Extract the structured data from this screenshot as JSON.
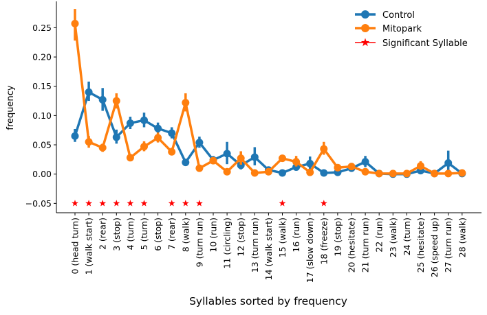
{
  "chart_data": {
    "type": "line",
    "xlabel": "Syllables sorted by frequency",
    "ylabel": "frequency",
    "ylim": [
      -0.066,
      0.295
    ],
    "yticks": [
      "0.25",
      "0.20",
      "0.15",
      "0.10",
      "0.05",
      "0.00",
      "−0.05"
    ],
    "ytick_values": [
      0.25,
      0.2,
      0.15,
      0.1,
      0.05,
      0.0,
      -0.05
    ],
    "categories": [
      "0 (head turn)",
      "1 (walk start)",
      "2 (rear)",
      "3 (stop)",
      "4 (turn)",
      "5 (turn)",
      "6 (stop)",
      "7 (rear)",
      "8 (walk)",
      "9 (turn run)",
      "10 (run)",
      "11 (circling)",
      "12 (stop)",
      "13 (turn run)",
      "14 (walk start)",
      "15 (walk)",
      "16 (run)",
      "17 (slow down)",
      "18 (freeze)",
      "19 (stop)",
      "20 (hesitate)",
      "21 (turn run)",
      "22 (run)",
      "23 (walk)",
      "24 (turn)",
      "25 (hesitate)",
      "26 (speed up)",
      "27 (turn run)",
      "28 (walk)"
    ],
    "legend_position": "top-right",
    "series": [
      {
        "name": "Control",
        "color": "#1f77b4",
        "values": [
          0.065,
          0.14,
          0.127,
          0.063,
          0.087,
          0.092,
          0.078,
          0.07,
          0.02,
          0.054,
          0.024,
          0.035,
          0.015,
          0.029,
          0.007,
          0.002,
          0.012,
          0.018,
          0.002,
          0.003,
          0.01,
          0.021,
          0.001,
          0.0,
          0.0,
          0.006,
          0.001,
          0.019,
          0.001
        ],
        "err_low": [
          0.055,
          0.125,
          0.108,
          0.052,
          0.077,
          0.08,
          0.07,
          0.061,
          0.015,
          0.045,
          0.017,
          0.017,
          0.008,
          0.015,
          0.002,
          0.0,
          0.006,
          0.008,
          0.0,
          0.0,
          0.005,
          0.012,
          0.0,
          0.0,
          0.0,
          0.001,
          0.0,
          0.0,
          0.0
        ],
        "err_high": [
          0.077,
          0.158,
          0.147,
          0.076,
          0.098,
          0.105,
          0.088,
          0.08,
          0.026,
          0.064,
          0.031,
          0.055,
          0.022,
          0.046,
          0.012,
          0.006,
          0.02,
          0.03,
          0.006,
          0.008,
          0.016,
          0.031,
          0.003,
          0.002,
          0.002,
          0.012,
          0.004,
          0.04,
          0.003
        ]
      },
      {
        "name": "Mitopark",
        "color": "#ff7f0e",
        "values": [
          0.257,
          0.055,
          0.045,
          0.125,
          0.028,
          0.047,
          0.062,
          0.038,
          0.122,
          0.01,
          0.023,
          0.004,
          0.027,
          0.002,
          0.004,
          0.027,
          0.021,
          0.003,
          0.043,
          0.011,
          0.013,
          0.004,
          0.001,
          0.001,
          0.001,
          0.014,
          0.001,
          0.001,
          0.002
        ],
        "err_low": [
          0.228,
          0.045,
          0.038,
          0.112,
          0.022,
          0.039,
          0.054,
          0.032,
          0.107,
          0.005,
          0.018,
          0.0,
          0.016,
          0.0,
          0.0,
          0.021,
          0.013,
          0.0,
          0.033,
          0.007,
          0.009,
          0.001,
          0.0,
          0.0,
          0.0,
          0.007,
          0.0,
          0.0,
          0.0
        ],
        "err_high": [
          0.282,
          0.065,
          0.052,
          0.138,
          0.034,
          0.056,
          0.071,
          0.045,
          0.138,
          0.016,
          0.029,
          0.008,
          0.039,
          0.005,
          0.008,
          0.033,
          0.031,
          0.006,
          0.055,
          0.016,
          0.018,
          0.008,
          0.003,
          0.003,
          0.003,
          0.022,
          0.003,
          0.003,
          0.004
        ]
      }
    ],
    "significant": {
      "name": "Significant Syllable",
      "color": "#ff0000",
      "y": -0.05,
      "indices": [
        0,
        1,
        2,
        3,
        4,
        5,
        7,
        8,
        9,
        15,
        18
      ]
    }
  }
}
